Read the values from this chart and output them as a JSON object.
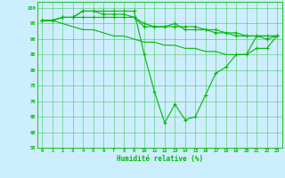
{
  "line_straight": [
    96,
    96,
    95,
    94,
    93,
    93,
    92,
    91,
    91,
    90,
    89,
    89,
    88,
    88,
    87,
    87,
    86,
    86,
    85,
    85,
    85,
    91,
    91,
    91
  ],
  "line_dip": [
    96,
    96,
    97,
    97,
    99,
    99,
    99,
    99,
    99,
    99,
    85,
    73,
    63,
    69,
    64,
    65,
    72,
    79,
    81,
    85,
    85,
    87,
    87,
    91
  ],
  "line_top1": [
    96,
    96,
    97,
    97,
    99,
    99,
    98,
    98,
    98,
    97,
    95,
    94,
    94,
    95,
    93,
    93,
    93,
    92,
    92,
    91,
    91,
    91,
    91,
    91
  ],
  "line_top2": [
    96,
    96,
    97,
    97,
    97,
    97,
    97,
    97,
    97,
    97,
    94,
    94,
    94,
    94,
    94,
    94,
    93,
    93,
    92,
    92,
    91,
    91,
    90,
    91
  ],
  "xlabel": "Humidité relative (%)",
  "ylim": [
    55,
    102
  ],
  "xlim": [
    -0.5,
    23.5
  ],
  "yticks": [
    55,
    60,
    65,
    70,
    75,
    80,
    85,
    90,
    95,
    100
  ],
  "xticks": [
    0,
    1,
    2,
    3,
    4,
    5,
    6,
    7,
    8,
    9,
    10,
    11,
    12,
    13,
    14,
    15,
    16,
    17,
    18,
    19,
    20,
    21,
    22,
    23
  ],
  "line_color": "#00bb00",
  "bg_color": "#cceeff",
  "grid_color": "#33bb33"
}
